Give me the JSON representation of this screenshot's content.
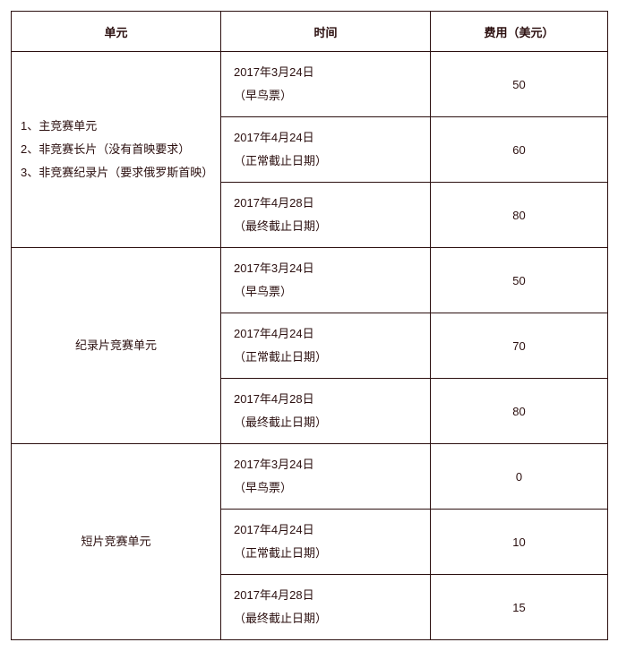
{
  "table": {
    "headers": {
      "unit": "单元",
      "time": "时间",
      "fee": "费用（美元）"
    },
    "groups": [
      {
        "unit_lines": [
          "1、主竞赛单元",
          "2、非竞赛长片（没有首映要求）",
          "3、非竞赛纪录片（要求俄罗斯首映）"
        ],
        "unit_align": "left",
        "rows": [
          {
            "date": "2017年3月24日",
            "note": "（早鸟票）",
            "fee": "50"
          },
          {
            "date": "2017年4月24日",
            "note": "（正常截止日期）",
            "fee": "60"
          },
          {
            "date": "2017年4月28日",
            "note": "（最终截止日期）",
            "fee": "80"
          }
        ]
      },
      {
        "unit_lines": [
          "纪录片竞赛单元"
        ],
        "unit_align": "center",
        "rows": [
          {
            "date": "2017年3月24日",
            "note": "（早鸟票）",
            "fee": "50"
          },
          {
            "date": "2017年4月24日",
            "note": "（正常截止日期）",
            "fee": "70"
          },
          {
            "date": "2017年4月28日",
            "note": "（最终截止日期）",
            "fee": "80"
          }
        ]
      },
      {
        "unit_lines": [
          "短片竞赛单元"
        ],
        "unit_align": "center",
        "rows": [
          {
            "date": "2017年3月24日",
            "note": "（早鸟票）",
            "fee": "0"
          },
          {
            "date": "2017年4月24日",
            "note": "（正常截止日期）",
            "fee": "10"
          },
          {
            "date": "2017年4月28日",
            "note": "（最终截止日期）",
            "fee": "15"
          }
        ]
      }
    ]
  },
  "colors": {
    "border": "#2b0f0f",
    "text": "#2b0f0f",
    "background": "#ffffff"
  }
}
